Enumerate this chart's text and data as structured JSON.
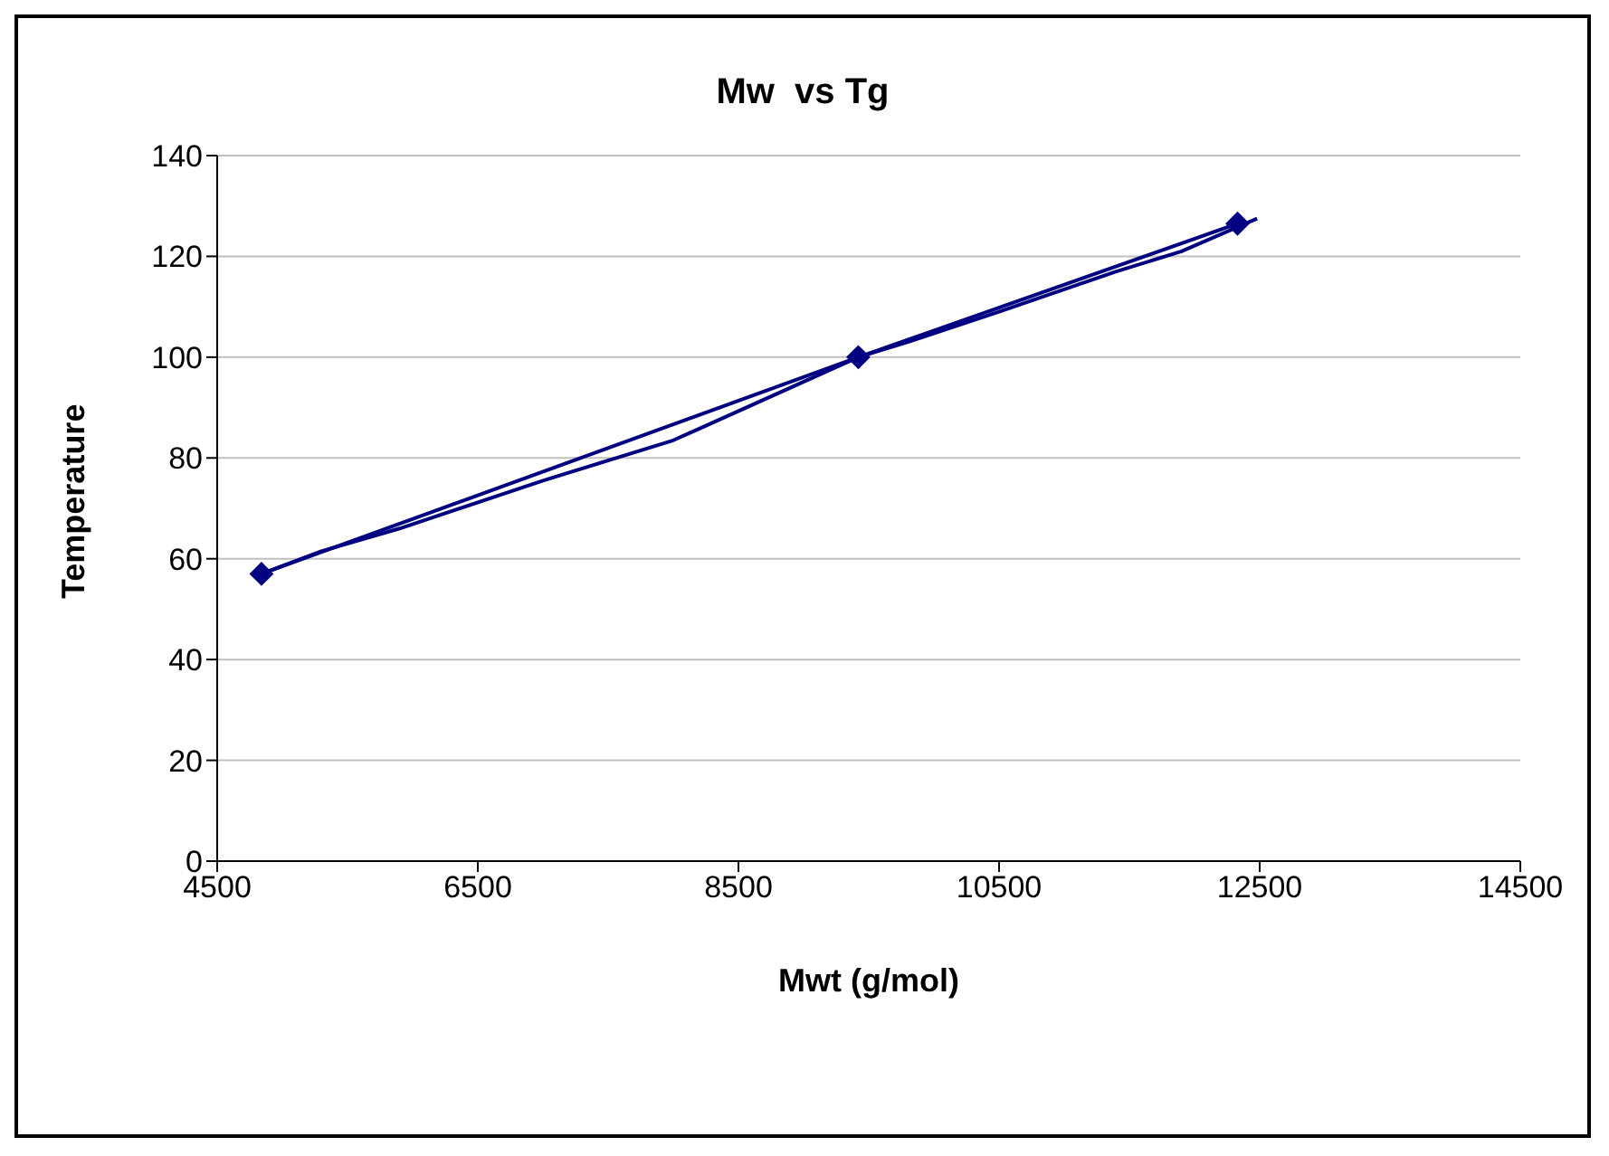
{
  "chart_data": {
    "type": "line",
    "title": "Mw  vs Tg",
    "xlabel": "Mwt (g/mol)",
    "ylabel": "Temperature",
    "xlim": [
      4500,
      14500
    ],
    "xticks": [
      4500,
      6500,
      8500,
      10500,
      12500,
      14500
    ],
    "ylim": [
      0,
      140
    ],
    "yticks": [
      0,
      20,
      40,
      60,
      80,
      100,
      120,
      140
    ],
    "grid": "y",
    "marker": "diamond",
    "line_style": "solid",
    "series": [
      {
        "color": "#000080",
        "x": [
          4840,
          9420,
          12330
        ],
        "values": [
          57,
          100,
          126.5
        ]
      },
      {
        "color": "#000080",
        "marker": "none",
        "x": [
          4840,
          5300,
          5900,
          7000,
          8000,
          9420,
          9800,
          10500,
          11400,
          11900,
          12480
        ],
        "values": [
          57,
          61.5,
          66,
          75.5,
          83.5,
          100,
          103,
          109,
          117,
          121,
          127.5
        ]
      }
    ]
  }
}
